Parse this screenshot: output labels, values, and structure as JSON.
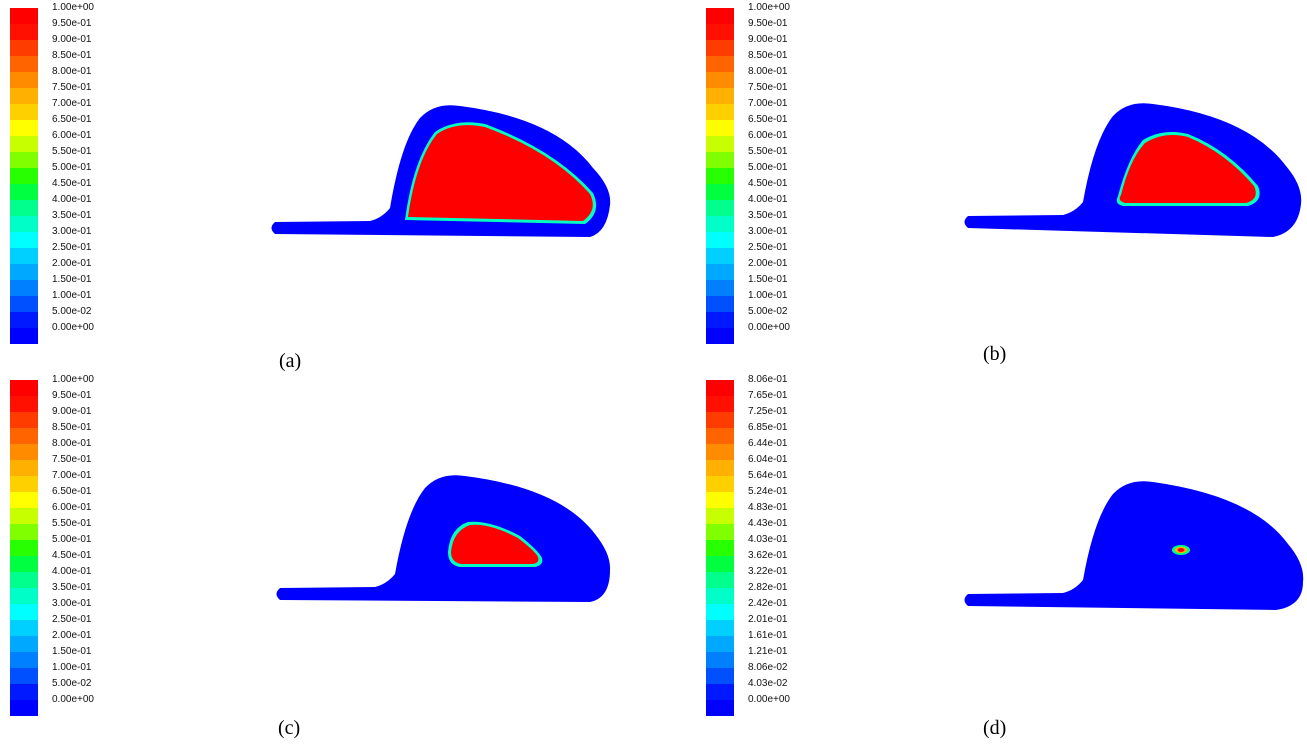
{
  "colormap": [
    "#0000ff",
    "#0019ff",
    "#0050ff",
    "#0080ff",
    "#00a8ff",
    "#00d0ff",
    "#00ffff",
    "#00ffc8",
    "#00ff8c",
    "#00ff40",
    "#28ff00",
    "#80ff00",
    "#c8ff00",
    "#ffff00",
    "#ffd000",
    "#ffb000",
    "#ff8c00",
    "#ff6400",
    "#ff3c00",
    "#ff1000",
    "#ff0000"
  ],
  "panels": [
    {
      "caption": "(a)",
      "legend_ticks": [
        "1.00e+00",
        "9.50e-01",
        "9.00e-01",
        "8.50e-01",
        "8.00e-01",
        "7.50e-01",
        "7.00e-01",
        "6.50e-01",
        "6.00e-01",
        "5.50e-01",
        "5.00e-01",
        "4.50e-01",
        "4.00e-01",
        "3.50e-01",
        "3.00e-01",
        "2.50e-01",
        "2.00e-01",
        "1.50e-01",
        "1.00e-01",
        "5.00e-02",
        "0.00e+00"
      ],
      "contour": "large region"
    },
    {
      "caption": "(b)",
      "legend_ticks": [
        "1.00e+00",
        "9.50e-01",
        "9.00e-01",
        "8.50e-01",
        "8.00e-01",
        "7.50e-01",
        "7.00e-01",
        "6.50e-01",
        "6.00e-01",
        "5.50e-01",
        "5.00e-01",
        "4.50e-01",
        "4.00e-01",
        "3.50e-01",
        "3.00e-01",
        "2.50e-01",
        "2.00e-01",
        "1.50e-01",
        "1.00e-01",
        "5.00e-02",
        "0.00e+00"
      ],
      "contour": "medium region"
    },
    {
      "caption": "(c)",
      "legend_ticks": [
        "1.00e+00",
        "9.50e-01",
        "9.00e-01",
        "8.50e-01",
        "8.00e-01",
        "7.50e-01",
        "7.00e-01",
        "6.50e-01",
        "6.00e-01",
        "5.50e-01",
        "5.00e-01",
        "4.50e-01",
        "4.00e-01",
        "3.50e-01",
        "3.00e-01",
        "2.50e-01",
        "2.00e-01",
        "1.50e-01",
        "1.00e-01",
        "5.00e-02",
        "0.00e+00"
      ],
      "contour": "small region"
    },
    {
      "caption": "(d)",
      "legend_ticks": [
        "8.06e-01",
        "7.65e-01",
        "7.25e-01",
        "6.85e-01",
        "6.44e-01",
        "6.04e-01",
        "5.64e-01",
        "5.24e-01",
        "4.83e-01",
        "4.43e-01",
        "4.03e-01",
        "3.62e-01",
        "3.22e-01",
        "2.82e-01",
        "2.42e-01",
        "2.01e-01",
        "1.61e-01",
        "1.21e-01",
        "8.06e-02",
        "4.03e-02",
        "0.00e+00"
      ],
      "contour": "point region"
    }
  ]
}
